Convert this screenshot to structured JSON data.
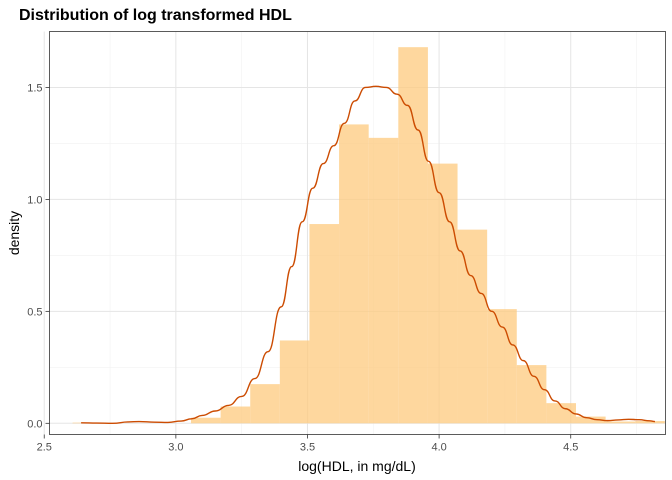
{
  "chart_data": {
    "type": "histogram",
    "title": "Distribution of log transformed HDL",
    "xlabel": "log(HDL, in mg/dL)",
    "ylabel": "density",
    "xlim": [
      2.52,
      4.86
    ],
    "ylim": [
      -0.05,
      1.75
    ],
    "x_ticks": [
      2.5,
      3.0,
      3.5,
      4.0,
      4.5
    ],
    "x_tick_labels": [
      "2.5",
      "3.0",
      "3.5",
      "4.0",
      "4.5"
    ],
    "y_ticks": [
      0.0,
      0.5,
      1.0,
      1.5
    ],
    "y_tick_labels": [
      "0.0",
      "0.5",
      "1.0",
      "1.5"
    ],
    "grid": true,
    "histogram": {
      "color": "#fdc97e",
      "opacity": 0.75,
      "bin_width": 0.1125,
      "bins": [
        {
          "x0": 2.6075,
          "x1": 2.72,
          "density": 0.003
        },
        {
          "x0": 2.72,
          "x1": 2.8325,
          "density": 0.0
        },
        {
          "x0": 2.8325,
          "x1": 2.945,
          "density": 0.0
        },
        {
          "x0": 2.945,
          "x1": 3.0575,
          "density": 0.0
        },
        {
          "x0": 3.0575,
          "x1": 3.17,
          "density": 0.025
        },
        {
          "x0": 3.17,
          "x1": 3.2825,
          "density": 0.075
        },
        {
          "x0": 3.2825,
          "x1": 3.395,
          "density": 0.175
        },
        {
          "x0": 3.395,
          "x1": 3.5075,
          "density": 0.37
        },
        {
          "x0": 3.5075,
          "x1": 3.62,
          "density": 0.89
        },
        {
          "x0": 3.62,
          "x1": 3.7325,
          "density": 1.335
        },
        {
          "x0": 3.7325,
          "x1": 3.845,
          "density": 1.275
        },
        {
          "x0": 3.845,
          "x1": 3.9575,
          "density": 1.68
        },
        {
          "x0": 3.9575,
          "x1": 4.07,
          "density": 1.16
        },
        {
          "x0": 4.07,
          "x1": 4.1825,
          "density": 0.865
        },
        {
          "x0": 4.1825,
          "x1": 4.295,
          "density": 0.51
        },
        {
          "x0": 4.295,
          "x1": 4.4075,
          "density": 0.26
        },
        {
          "x0": 4.4075,
          "x1": 4.52,
          "density": 0.09
        },
        {
          "x0": 4.52,
          "x1": 4.6325,
          "density": 0.03
        },
        {
          "x0": 4.6325,
          "x1": 4.745,
          "density": 0.008
        },
        {
          "x0": 4.745,
          "x1": 4.8575,
          "density": 0.01
        }
      ]
    },
    "density_curve": {
      "color": "#cc4c02",
      "points": [
        [
          2.64,
          0.002
        ],
        [
          2.7,
          0.001
        ],
        [
          2.76,
          0.0
        ],
        [
          2.82,
          0.006
        ],
        [
          2.86,
          0.008
        ],
        [
          2.92,
          0.005
        ],
        [
          2.97,
          0.004
        ],
        [
          3.02,
          0.01
        ],
        [
          3.06,
          0.02
        ],
        [
          3.1,
          0.035
        ],
        [
          3.15,
          0.055
        ],
        [
          3.2,
          0.08
        ],
        [
          3.25,
          0.12
        ],
        [
          3.3,
          0.2
        ],
        [
          3.35,
          0.32
        ],
        [
          3.4,
          0.52
        ],
        [
          3.44,
          0.7
        ],
        [
          3.48,
          0.9
        ],
        [
          3.52,
          1.05
        ],
        [
          3.56,
          1.16
        ],
        [
          3.6,
          1.24
        ],
        [
          3.64,
          1.34
        ],
        [
          3.68,
          1.44
        ],
        [
          3.72,
          1.5
        ],
        [
          3.76,
          1.505
        ],
        [
          3.8,
          1.5
        ],
        [
          3.84,
          1.47
        ],
        [
          3.88,
          1.42
        ],
        [
          3.92,
          1.31
        ],
        [
          3.96,
          1.17
        ],
        [
          4.0,
          1.03
        ],
        [
          4.04,
          0.9
        ],
        [
          4.08,
          0.77
        ],
        [
          4.12,
          0.66
        ],
        [
          4.16,
          0.58
        ],
        [
          4.2,
          0.5
        ],
        [
          4.24,
          0.43
        ],
        [
          4.28,
          0.35
        ],
        [
          4.32,
          0.28
        ],
        [
          4.36,
          0.21
        ],
        [
          4.4,
          0.15
        ],
        [
          4.44,
          0.1
        ],
        [
          4.48,
          0.065
        ],
        [
          4.52,
          0.042
        ],
        [
          4.56,
          0.025
        ],
        [
          4.6,
          0.016
        ],
        [
          4.64,
          0.012
        ],
        [
          4.68,
          0.015
        ],
        [
          4.72,
          0.018
        ],
        [
          4.76,
          0.016
        ],
        [
          4.8,
          0.011
        ],
        [
          4.82,
          0.008
        ]
      ]
    }
  }
}
